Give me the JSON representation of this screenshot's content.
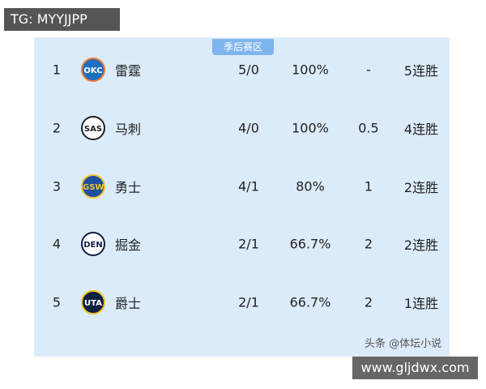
{
  "header": {
    "tag": "TG: MYYJJPP",
    "tab": "季后赛区"
  },
  "table": {
    "rows": [
      [
        "1",
        "OKC",
        "雷霆",
        "5/0",
        "100%",
        "-",
        "5连胜"
      ],
      [
        "2",
        "SAS",
        "马刺",
        "4/0",
        "100%",
        "0.5",
        "4连胜"
      ],
      [
        "3",
        "GSW",
        "勇士",
        "4/1",
        "80%",
        "1",
        "2连胜"
      ],
      [
        "4",
        "DEN",
        "掘金",
        "2/1",
        "66.7%",
        "2",
        "2连胜"
      ],
      [
        "5",
        "UTA",
        "爵士",
        "2/1",
        "66.7%",
        "2",
        "1连胜"
      ]
    ]
  },
  "footer": {
    "credit": "头条 @体坛小说",
    "watermark": "www.gljdwx.com"
  }
}
